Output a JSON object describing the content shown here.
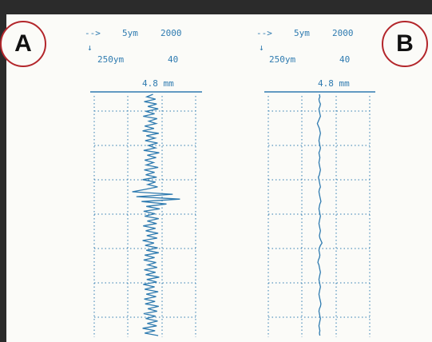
{
  "chart_data": [
    {
      "type": "line",
      "panel_label": "A",
      "scale": {
        "horizontal_arrow": "-->",
        "horizontal_unit": "5ym",
        "horizontal_value": "2000",
        "vertical_arrow": "↓",
        "vertical_unit": "250ym",
        "vertical_value": "40"
      },
      "length_label": "4.8 mm",
      "grid": true,
      "deviation": [
        0.4,
        -0.8,
        0.9,
        -1.3,
        1.1,
        -0.6,
        1.4,
        -1.0,
        0.7,
        -1.5,
        1.2,
        -0.4,
        1.0,
        -1.2,
        0.6,
        -1.6,
        1.5,
        -0.9,
        0.8,
        -1.1,
        1.3,
        -0.5,
        0.9,
        -1.4,
        1.6,
        -0.7,
        1.0,
        -1.2,
        0.5,
        -0.9,
        1.4,
        -1.3,
        0.7,
        -1.0,
        1.1,
        -1.6,
        0.9,
        -0.6,
        1.3,
        -1.1,
        -3.6,
        4.2,
        -2.8,
        5.6,
        -1.8,
        3.0,
        -0.9,
        1.7,
        -1.4,
        0.8,
        -1.2,
        1.5,
        -0.7,
        1.1,
        -1.5,
        0.9,
        -1.0,
        1.4,
        -0.8,
        1.2,
        -1.6,
        0.6,
        -1.1,
        1.3,
        -0.9,
        1.5,
        -1.2,
        0.7,
        -1.4,
        1.0,
        -0.6,
        1.2,
        -1.3,
        0.9,
        -1.0,
        1.6,
        -0.8,
        1.1,
        -1.5,
        0.7,
        -1.2,
        1.4,
        -0.9,
        1.0,
        -1.3,
        0.8,
        -1.1,
        1.5,
        -0.6,
        1.2,
        -1.4,
        0.9,
        -1.0,
        1.3,
        -0.7,
        1.1,
        -1.6,
        0.8,
        -1.2,
        1.4
      ]
    },
    {
      "type": "line",
      "panel_label": "B",
      "scale": {
        "horizontal_arrow": "-->",
        "horizontal_unit": "5ym",
        "horizontal_value": "2000",
        "vertical_arrow": "↓",
        "vertical_unit": "250ym",
        "vertical_value": "40"
      },
      "length_label": "4.8 mm",
      "grid": true,
      "deviation": [
        0.0,
        0.1,
        -0.1,
        0.0,
        0.2,
        0.1,
        -0.1,
        0.0,
        0.1,
        0.2,
        0.0,
        -0.2,
        -0.4,
        -0.2,
        0.0,
        0.1,
        0.2,
        0.1,
        0.0,
        -0.1,
        0.0,
        0.1,
        0.2,
        0.1,
        -0.1,
        0.0,
        0.1,
        0.0,
        -0.1,
        0.0,
        0.1,
        0.2,
        0.1,
        0.0,
        -0.2,
        -0.1,
        0.0,
        0.1,
        0.2,
        0.0,
        -0.1,
        0.0,
        0.1,
        0.2,
        0.3,
        0.1,
        0.0,
        -0.1,
        0.0,
        0.1,
        0.2,
        0.1,
        0.0,
        -0.1,
        0.0,
        0.1,
        0.2,
        0.1,
        0.0,
        0.1,
        0.3,
        0.5,
        0.2,
        0.0,
        -0.1,
        0.0,
        0.1,
        0.0,
        -0.2,
        -0.3,
        -0.1,
        0.0,
        0.1,
        0.2,
        0.1,
        0.0,
        -0.1,
        0.0,
        0.1,
        0.2,
        0.1,
        0.0,
        -0.1,
        0.0,
        0.1,
        0.2,
        0.3,
        0.2,
        0.0,
        -0.1,
        0.0,
        0.1,
        0.2,
        0.1,
        0.0,
        -0.1,
        0.0,
        0.1,
        0.0,
        0.1
      ]
    }
  ]
}
